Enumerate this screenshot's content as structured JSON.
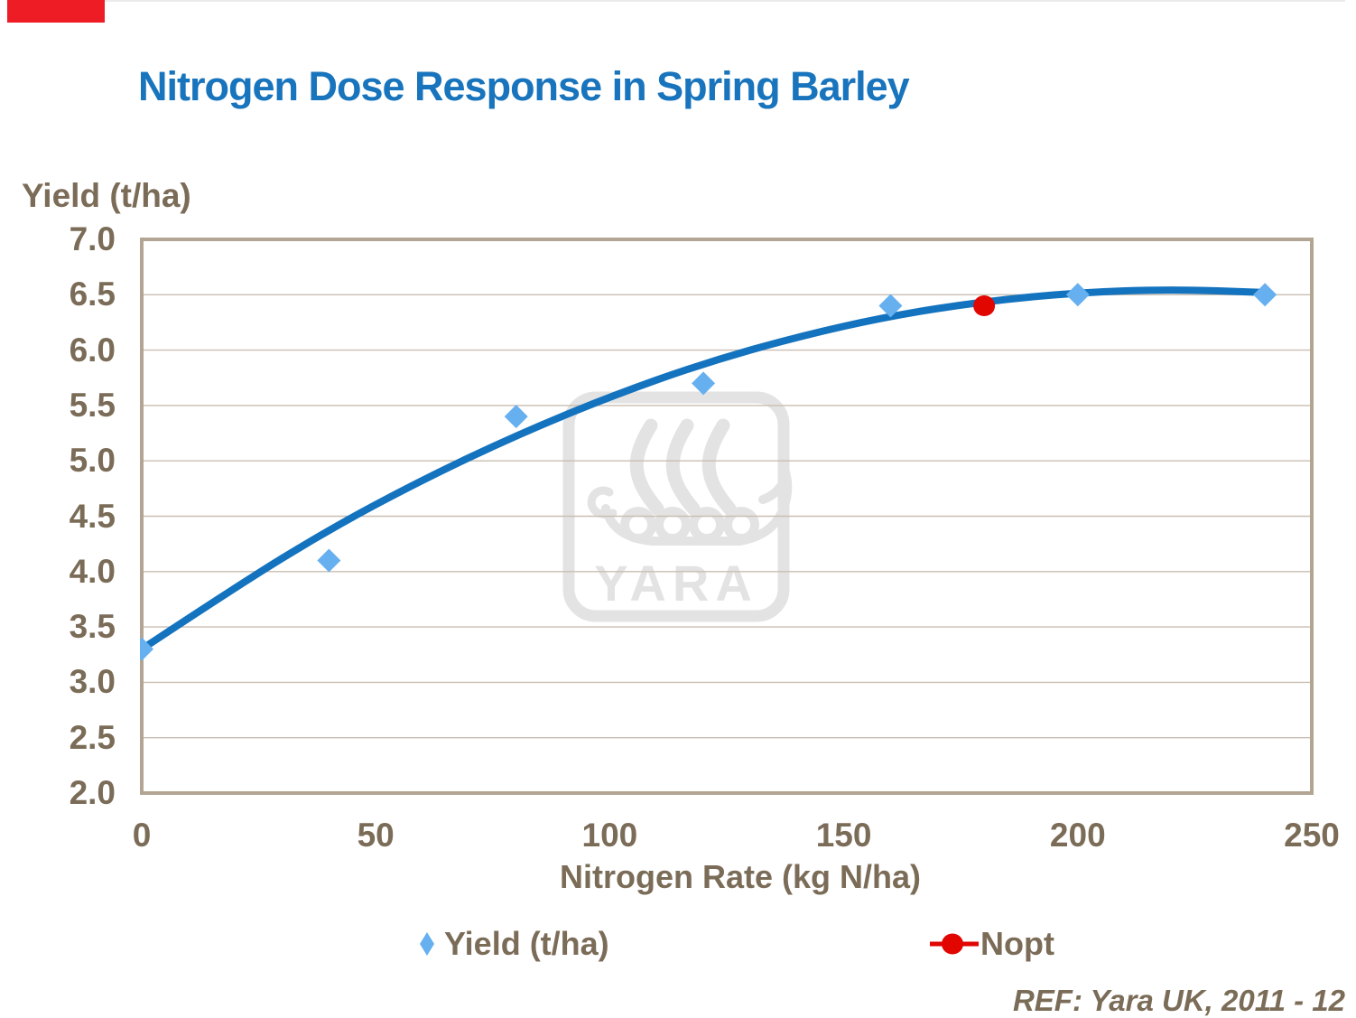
{
  "page": {
    "title": "Nitrogen Dose Response in Spring Barley",
    "ref": "REF: Yara UK, 2011 - 12"
  },
  "watermark": {
    "label": "YARA",
    "icon": "yara-viking-ship-logo",
    "color": "#e3e3e3"
  },
  "colors": {
    "title_blue": "#1874bc",
    "axis_text_brown": "#7b6c58",
    "plot_border_tan": "#b2a593",
    "gridline": "#c9beb1",
    "curve_blue": "#1473be",
    "point_light_blue": "#66b0f0",
    "nopt_red": "#e10600",
    "top_accent_red": "#ee1c25"
  },
  "chart_data": {
    "type": "scatter",
    "title": "Nitrogen Dose Response in Spring Barley",
    "xlabel": "Nitrogen Rate (kg N/ha)",
    "ylabel": "Yield (t/ha)",
    "xlim": [
      0,
      250
    ],
    "ylim": [
      2.0,
      7.0
    ],
    "x_ticks": [
      0,
      50,
      100,
      150,
      200,
      250
    ],
    "y_ticks": [
      7.0,
      6.5,
      6.0,
      5.5,
      5.0,
      4.5,
      4.0,
      3.5,
      3.0,
      2.5,
      2.0
    ],
    "grid": "horizontal",
    "legend_position": "bottom",
    "series": [
      {
        "name": "Yield (t/ha)",
        "marker": "diamond",
        "color": "#66b0f0",
        "points": [
          [
            0,
            3.3
          ],
          [
            40,
            4.1
          ],
          [
            80,
            5.4
          ],
          [
            120,
            5.7
          ],
          [
            160,
            6.4
          ],
          [
            200,
            6.5
          ],
          [
            240,
            6.5
          ]
        ]
      },
      {
        "name": "Nopt",
        "marker": "circle",
        "color": "#e10600",
        "points": [
          [
            180,
            6.4
          ]
        ]
      }
    ],
    "trend_line": {
      "series": "Yield (t/ha)",
      "color": "#1473be",
      "points": [
        [
          0,
          3.3
        ],
        [
          20,
          3.86
        ],
        [
          40,
          4.38
        ],
        [
          60,
          4.83
        ],
        [
          80,
          5.23
        ],
        [
          100,
          5.58
        ],
        [
          120,
          5.88
        ],
        [
          140,
          6.12
        ],
        [
          160,
          6.31
        ],
        [
          180,
          6.44
        ],
        [
          200,
          6.52
        ],
        [
          220,
          6.55
        ],
        [
          240,
          6.52
        ]
      ]
    }
  }
}
